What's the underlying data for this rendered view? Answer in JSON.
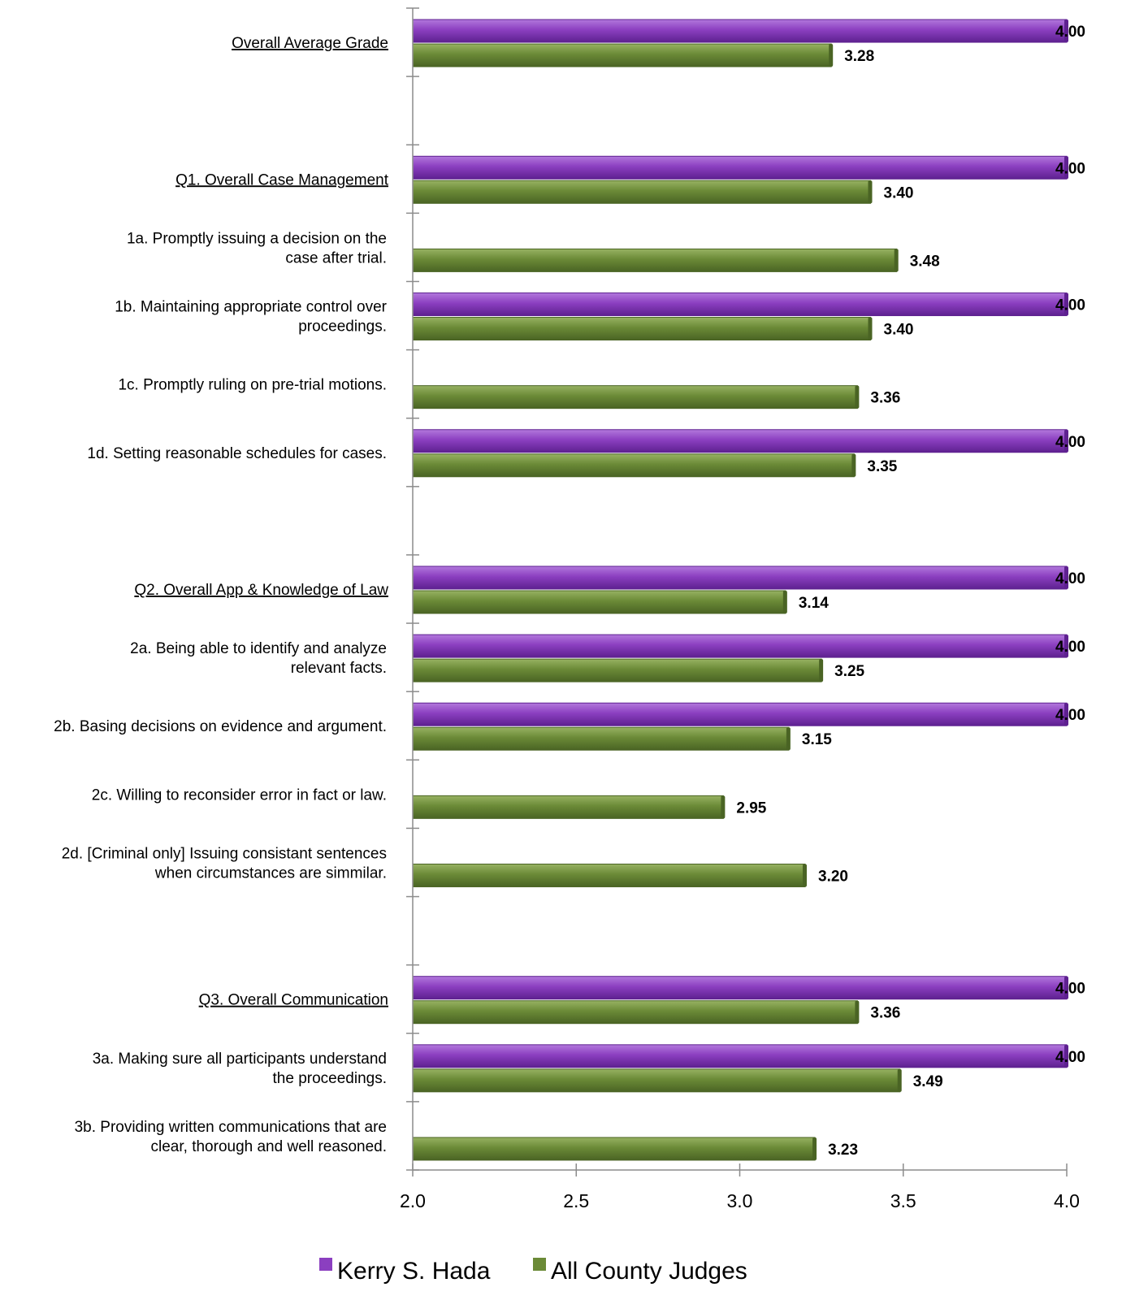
{
  "colors": {
    "kerry": "#8b3fc0",
    "kerry_light": "#b278dc",
    "kerry_dark": "#5e2190",
    "county": "#6b8a37",
    "county_light": "#97b262",
    "county_dark": "#4a6424",
    "axis": "#8c8c8c"
  },
  "legend": {
    "items": [
      {
        "label": "Kerry S. Hada",
        "color": "#8b3fc0"
      },
      {
        "label": "All County Judges",
        "color": "#6b8a37"
      }
    ]
  },
  "chart_data": {
    "type": "bar",
    "orientation": "horizontal",
    "title": "",
    "xlabel": "",
    "ylabel": "",
    "xlim": [
      2.0,
      4.0
    ],
    "xticks": [
      "2.0",
      "2.5",
      "3.0",
      "3.5",
      "4.0"
    ],
    "grid": false,
    "legend_position": "bottom",
    "categories": [
      {
        "label": "Overall Average Grade",
        "heading": true
      },
      {
        "label": "",
        "heading": false
      },
      {
        "label": "Q1. Overall Case Management",
        "heading": true
      },
      {
        "label": "1a. Promptly issuing a decision on the\ncase after trial.",
        "heading": false
      },
      {
        "label": "1b. Maintaining appropriate control over\nproceedings.",
        "heading": false
      },
      {
        "label": "1c. Promptly ruling on pre-trial motions.",
        "heading": false
      },
      {
        "label": "1d. Setting reasonable schedules for cases.",
        "heading": false
      },
      {
        "label": "",
        "heading": false
      },
      {
        "label": "Q2. Overall App & Knowledge of Law",
        "heading": true
      },
      {
        "label": "2a. Being able to identify and analyze\nrelevant facts.",
        "heading": false
      },
      {
        "label": "2b. Basing decisions on evidence and argument.",
        "heading": false
      },
      {
        "label": "2c. Willing to reconsider error in fact or law.",
        "heading": false
      },
      {
        "label": "2d. [Criminal only] Issuing consistant sentences\nwhen circumstances are simmilar.",
        "heading": false
      },
      {
        "label": "",
        "heading": false
      },
      {
        "label": "Q3. Overall Communication",
        "heading": true
      },
      {
        "label": "3a. Making sure all participants understand\nthe proceedings.",
        "heading": false
      },
      {
        "label": "3b. Providing written communications that are\nclear, thorough and well reasoned.",
        "heading": false
      }
    ],
    "series": [
      {
        "name": "Kerry S. Hada",
        "values": [
          4.0,
          null,
          4.0,
          null,
          4.0,
          null,
          4.0,
          null,
          4.0,
          4.0,
          4.0,
          null,
          null,
          null,
          4.0,
          4.0,
          null
        ],
        "labels": [
          "4.00",
          "",
          "4.00",
          "",
          "4.00",
          "",
          "4.00",
          "",
          "4.00",
          "4.00",
          "4.00",
          "",
          "",
          "",
          "4.00",
          "4.00",
          ""
        ]
      },
      {
        "name": "All County Judges",
        "values": [
          3.28,
          null,
          3.4,
          3.48,
          3.4,
          3.36,
          3.35,
          null,
          3.14,
          3.25,
          3.15,
          2.95,
          3.2,
          null,
          3.36,
          3.49,
          3.23
        ],
        "labels": [
          "3.28",
          "",
          "3.40",
          "3.48",
          "3.40",
          "3.36",
          "3.35",
          "",
          "3.14",
          "3.25",
          "3.15",
          "2.95",
          "3.20",
          "",
          "3.36",
          "3.49",
          "3.23"
        ]
      }
    ]
  }
}
